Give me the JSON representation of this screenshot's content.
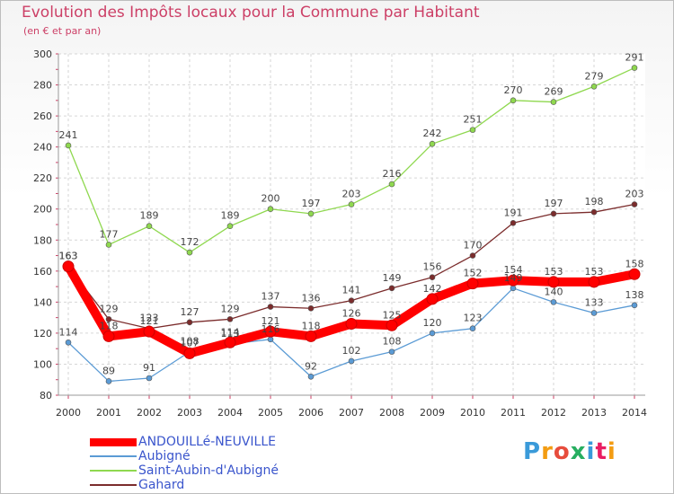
{
  "title": "Evolution des Impôts locaux pour la Commune par Habitant",
  "subtitle": "(en € et par an)",
  "logo": {
    "text": "Proxiti",
    "colors": [
      "#3a9ad9",
      "#f39c12",
      "#e74c3c",
      "#27ae60",
      "#3a9ad9",
      "#e91e63",
      "#f39c12"
    ]
  },
  "chart_data": {
    "type": "line",
    "title": "Evolution des Impôts locaux pour la Commune par Habitant",
    "subtitle": "(en € et par an)",
    "x": [
      "2000",
      "2001",
      "2002",
      "2003",
      "2004",
      "2005",
      "2006",
      "2007",
      "2008",
      "2009",
      "2010",
      "2011",
      "2012",
      "2013",
      "2014"
    ],
    "ylim": [
      80,
      300
    ],
    "yticks": [
      80,
      100,
      120,
      140,
      160,
      180,
      200,
      220,
      240,
      260,
      280,
      300
    ],
    "grid": true,
    "legend_position": "bottom-left",
    "series": [
      {
        "name": "ANDOUILLé-NEUVILLE",
        "color": "#ff0000",
        "values": [
          163,
          118,
          121,
          107,
          114,
          121,
          118,
          126,
          125,
          142,
          152,
          154,
          153,
          153,
          158
        ],
        "labels": [
          "163",
          "118",
          "121",
          "107",
          "114",
          "121",
          "118",
          "126",
          "125",
          "142",
          "152",
          "154",
          "153",
          "153",
          "158"
        ]
      },
      {
        "name": "Aubigné",
        "color": "#5b9bd5",
        "values": [
          114,
          89,
          91,
          108,
          113,
          116,
          92,
          102,
          108,
          120,
          123,
          149,
          140,
          133,
          138
        ],
        "labels": [
          "114",
          "89",
          "91",
          "108",
          "113",
          "116",
          "92",
          "102",
          "108",
          "120",
          "123",
          "149",
          "140",
          "133",
          "138"
        ]
      },
      {
        "name": "Saint-Aubin-d'Aubigné",
        "color": "#8fd84f",
        "values": [
          241,
          177,
          189,
          172,
          189,
          200,
          197,
          203,
          216,
          242,
          251,
          270,
          269,
          279,
          291
        ],
        "labels": [
          "241",
          "177",
          "189",
          "172",
          "189",
          "200",
          "197",
          "203",
          "216",
          "242",
          "251",
          "270",
          "269",
          "279",
          "291"
        ]
      },
      {
        "name": "Gahard",
        "color": "#7b2c2c",
        "values": [
          163,
          129,
          123,
          127,
          129,
          137,
          136,
          141,
          149,
          156,
          170,
          191,
          197,
          198,
          203
        ],
        "labels": [
          "163",
          "129",
          "123",
          "127",
          "129",
          "137",
          "136",
          "141",
          "149",
          "156",
          "170",
          "191",
          "197",
          "198",
          "203"
        ]
      }
    ]
  }
}
